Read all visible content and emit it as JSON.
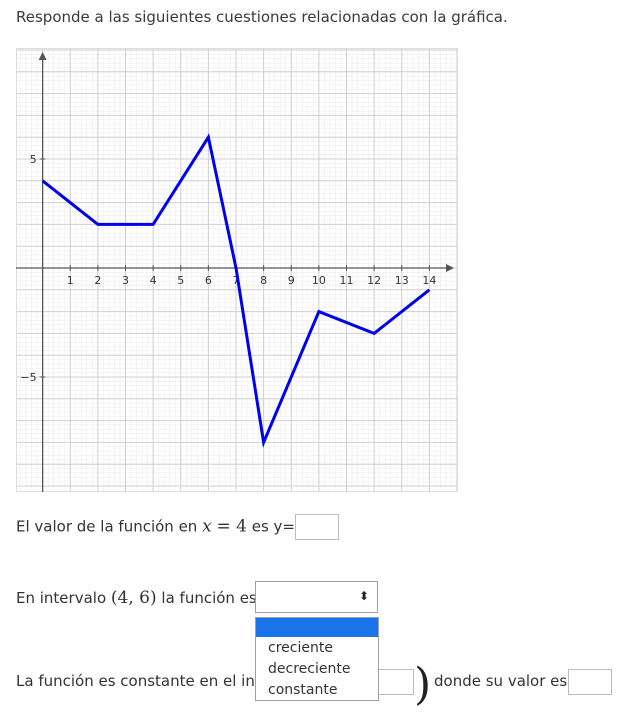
{
  "question": {
    "intro": "Responde a las siguientes cuestiones relacionadas con la gráfica."
  },
  "chart_data": {
    "type": "line",
    "x": [
      0,
      2,
      4,
      6,
      7,
      8,
      10,
      12,
      14
    ],
    "y": [
      4,
      2,
      2,
      6,
      0,
      -8,
      -2,
      -3,
      -1
    ],
    "xlim": [
      -1,
      15
    ],
    "ylim": [
      -10,
      10
    ],
    "x_ticks": [
      "1",
      "2",
      "3",
      "4",
      "5",
      "6",
      "7",
      "8",
      "9",
      "10",
      "11",
      "12",
      "13",
      "14"
    ],
    "y_ticks": [
      "5",
      "−5"
    ],
    "grid": true,
    "line_color": "#0000ee"
  },
  "q1": {
    "prefix": "El valor de la función en",
    "math_var": "x",
    "math_eq": "= 4",
    "suffix": "es y=",
    "answer": ""
  },
  "q2": {
    "prefix": "En intervalo",
    "interval": "(4, 6)",
    "suffix": "la función es",
    "selected": "",
    "arrow_icon": "⬍",
    "options": [
      "",
      "creciente",
      "decreciente",
      "constante"
    ]
  },
  "q3": {
    "prefix": "La función es constante en el int",
    "suffix": "donde su valor es",
    "answer": ""
  }
}
